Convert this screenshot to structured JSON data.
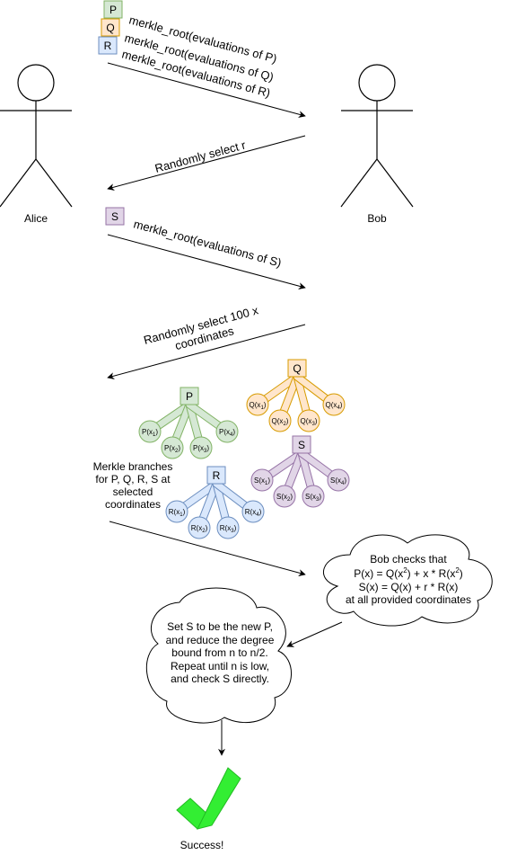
{
  "actors": {
    "alice": "Alice",
    "bob": "Bob"
  },
  "boxes": {
    "p": "P",
    "q": "Q",
    "r": "R",
    "s": "S"
  },
  "messages": {
    "root_p": "merkle_root(evaluations of P)",
    "root_q": "merkle_root(evaluations of Q)",
    "root_r": "merkle_root(evaluations of R)",
    "select_r": "Randomly select r",
    "root_s": "merkle_root(evaluations of S)",
    "select_x_line1": "Randomly select 100 x",
    "select_x_line2": "coordinates"
  },
  "branches_label": [
    "Merkle branches",
    "for P, Q, R, S at",
    "selected",
    "coordinates"
  ],
  "trees": {
    "p": {
      "root": "P",
      "leaves": [
        "P(x1)",
        "P(x2)",
        "P(x3)",
        "P(x4)"
      ]
    },
    "q": {
      "root": "Q",
      "leaves": [
        "Q(x1)",
        "Q(x2)",
        "Q(x3)",
        "Q(x4)"
      ]
    },
    "r": {
      "root": "R",
      "leaves": [
        "R(x1)",
        "R(x2)",
        "R(x3)",
        "R(x4)"
      ]
    },
    "s": {
      "root": "S",
      "leaves": [
        "S(x1)",
        "S(x2)",
        "S(x3)",
        "S(x4)"
      ]
    }
  },
  "bob_check": {
    "line1": "Bob checks that",
    "line2_a": "P(x) = Q(x",
    "line2_sup1": "2",
    "line2_b": ") + x * R(x",
    "line2_sup2": "2",
    "line2_c": ")",
    "line3": "S(x) = Q(x) + r * R(x)",
    "line4": "at all provided coordinates"
  },
  "repeat_note": [
    "Set S to be the new P,",
    "and reduce the degree",
    "bound from n to n/2.",
    "Repeat until n is low,",
    "and  check S directly."
  ],
  "success_label": "Success!",
  "colors": {
    "green_fill": "#d5e8d4",
    "green_stroke": "#82b366",
    "orange_fill": "#ffe6cc",
    "orange_stroke": "#d79b00",
    "blue_fill": "#dae8fc",
    "blue_stroke": "#6c8ebf",
    "purple_fill": "#e1d5e7",
    "purple_stroke": "#9673a6",
    "check": "#33ee33",
    "check_stroke": "#22bb22"
  }
}
